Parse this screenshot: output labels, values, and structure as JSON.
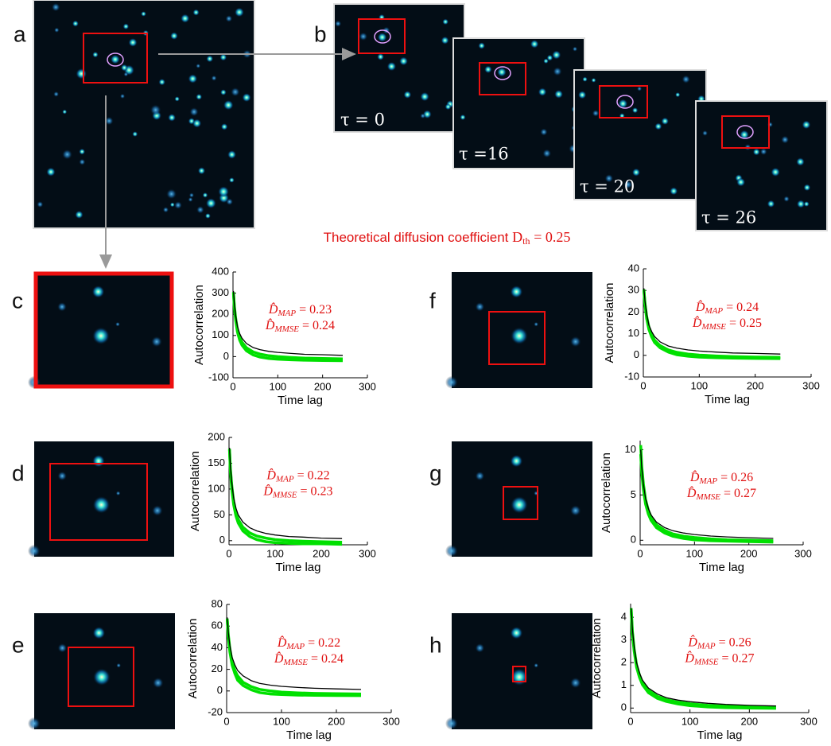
{
  "panel_labels": [
    "a",
    "b",
    "c",
    "d",
    "e",
    "f",
    "g",
    "h"
  ],
  "tau_labels": [
    "τ = 0",
    "τ =16",
    "τ = 20",
    "τ = 26"
  ],
  "theory": {
    "text": "Theoretical diffusion coefficient",
    "symbol": "D",
    "sub": "th",
    "rest": "= 0.25"
  },
  "chart_data": [
    {
      "type": "line",
      "x_label": "Time lag",
      "y_label": "Autocorrelation",
      "x": [
        1,
        3,
        6,
        10,
        15,
        20,
        30,
        45,
        60,
        80,
        100,
        130,
        160,
        200,
        245
      ],
      "series": [
        {
          "color": "#00e000",
          "values": [
            305,
            240,
            180,
            128,
            92,
            68,
            42,
            22,
            12,
            4,
            0,
            -4,
            -7,
            -9,
            -11
          ]
        },
        {
          "color": "#00e000",
          "values": [
            300,
            232,
            170,
            116,
            78,
            54,
            28,
            8,
            -2,
            -9,
            -12,
            -15,
            -17,
            -18,
            -19
          ]
        },
        {
          "color": "#000000",
          "values": [
            310,
            248,
            192,
            143,
            109,
            87,
            62,
            43,
            33,
            25,
            20,
            15,
            11,
            9,
            6
          ]
        }
      ],
      "xlim": [
        0,
        300
      ],
      "xticks": [
        0,
        100,
        200,
        300
      ],
      "ylim": [
        -100,
        400
      ],
      "yticks": [
        -100,
        0,
        100,
        200,
        300,
        400
      ],
      "annotations": [
        {
          "base": "D̂",
          "sub": "MAP",
          "rest": "= 0.23"
        },
        {
          "base": "D̂",
          "sub": "MMSE",
          "rest": "= 0.24"
        }
      ]
    },
    {
      "type": "line",
      "x_label": "Time lag",
      "y_label": "Autocorrelation",
      "x": [
        1,
        3,
        6,
        10,
        15,
        20,
        30,
        45,
        60,
        80,
        100,
        130,
        160,
        200,
        245
      ],
      "series": [
        {
          "color": "#00e000",
          "values": [
            178,
            140,
            106,
            76,
            55,
            41,
            26,
            15,
            9,
            5,
            2,
            0,
            -1,
            -2,
            -3
          ]
        },
        {
          "color": "#00e000",
          "values": [
            176,
            136,
            100,
            70,
            48,
            34,
            19,
            8,
            2,
            -2,
            -4,
            -5,
            -6,
            -6,
            -7
          ]
        },
        {
          "color": "#000000",
          "values": [
            180,
            144,
            112,
            83,
            63,
            50,
            36,
            25,
            19,
            14,
            11,
            8,
            7,
            5,
            4
          ]
        }
      ],
      "xlim": [
        0,
        300
      ],
      "xticks": [
        0,
        100,
        200,
        300
      ],
      "ylim": [
        -8,
        200
      ],
      "yticks": [
        0,
        50,
        100,
        150,
        200
      ],
      "annotations": [
        {
          "base": "D̂",
          "sub": "MAP",
          "rest": "= 0.22"
        },
        {
          "base": "D̂",
          "sub": "MMSE",
          "rest": "= 0.23"
        }
      ]
    },
    {
      "type": "line",
      "x_label": "Time lag",
      "y_label": "Autocorrelation",
      "x": [
        1,
        3,
        6,
        10,
        15,
        20,
        30,
        45,
        60,
        80,
        100,
        130,
        160,
        200,
        245
      ],
      "series": [
        {
          "color": "#00e000",
          "values": [
            67,
            52,
            39,
            27,
            19,
            14,
            8,
            4,
            1.5,
            0,
            -1,
            -1.8,
            -2.3,
            -2.6,
            -2.8
          ]
        },
        {
          "color": "#00e000",
          "values": [
            66,
            50,
            36,
            24,
            16,
            10,
            5,
            1,
            -1.5,
            -2.8,
            -3.3,
            -3.8,
            -4,
            -4.2,
            -4.3
          ]
        },
        {
          "color": "#000000",
          "values": [
            68,
            54,
            42,
            31,
            24,
            19,
            14,
            9.5,
            7,
            5.4,
            4.3,
            3.2,
            2.5,
            1.9,
            1.4
          ]
        }
      ],
      "xlim": [
        0,
        300
      ],
      "xticks": [
        0,
        100,
        200,
        300
      ],
      "ylim": [
        -20,
        80
      ],
      "yticks": [
        -20,
        0,
        20,
        40,
        60,
        80
      ],
      "annotations": [
        {
          "base": "D̂",
          "sub": "MAP",
          "rest": "= 0.22"
        },
        {
          "base": "D̂",
          "sub": "MMSE",
          "rest": "= 0.24"
        }
      ]
    },
    {
      "type": "line",
      "x_label": "Time lag",
      "y_label": "Autocorrelation",
      "x": [
        1,
        3,
        6,
        10,
        15,
        20,
        30,
        45,
        60,
        80,
        100,
        130,
        160,
        200,
        245
      ],
      "series": [
        {
          "color": "#00e000",
          "values": [
            30.5,
            24,
            18,
            13,
            9.5,
            7,
            4.5,
            2.5,
            1.4,
            0.6,
            0.1,
            -0.3,
            -0.6,
            -0.8,
            -0.9
          ]
        },
        {
          "color": "#00e000",
          "values": [
            30,
            23.5,
            17,
            12,
            8.5,
            6,
            3.5,
            1.5,
            0.3,
            -0.4,
            -0.8,
            -1.1,
            -1.3,
            -1.4,
            -1.5
          ]
        },
        {
          "color": "#000000",
          "values": [
            31,
            25,
            19,
            14,
            11,
            8.7,
            6.2,
            4.3,
            3.3,
            2.5,
            2,
            1.5,
            1.1,
            0.9,
            0.6
          ]
        }
      ],
      "xlim": [
        0,
        300
      ],
      "xticks": [
        0,
        100,
        200,
        300
      ],
      "ylim": [
        -10,
        40
      ],
      "yticks": [
        -10,
        0,
        10,
        20,
        30,
        40
      ],
      "annotations": [
        {
          "base": "D̂",
          "sub": "MAP",
          "rest": "= 0.24"
        },
        {
          "base": "D̂",
          "sub": "MMSE",
          "rest": "= 0.25"
        }
      ]
    },
    {
      "type": "line",
      "x_label": "Time lag",
      "y_label": "Autocorrelation",
      "x": [
        1,
        3,
        6,
        10,
        15,
        20,
        30,
        45,
        60,
        80,
        100,
        130,
        160,
        200,
        245
      ],
      "series": [
        {
          "color": "#00e000",
          "values": [
            10.5,
            8.2,
            6.2,
            4.5,
            3.3,
            2.6,
            1.7,
            1.1,
            0.7,
            0.45,
            0.3,
            0.15,
            0.05,
            0,
            -0.05
          ]
        },
        {
          "color": "#00e000",
          "values": [
            9.5,
            7.4,
            5.6,
            4,
            2.9,
            2.2,
            1.4,
            0.8,
            0.45,
            0.2,
            0.05,
            -0.05,
            -0.1,
            -0.15,
            -0.2
          ]
        },
        {
          "color": "#000000",
          "values": [
            10,
            8,
            6.2,
            4.6,
            3.5,
            2.8,
            2,
            1.4,
            1.05,
            0.8,
            0.63,
            0.47,
            0.37,
            0.28,
            0.2
          ]
        }
      ],
      "xlim": [
        0,
        300
      ],
      "xticks": [
        0,
        100,
        200,
        300
      ],
      "ylim": [
        -0.5,
        11
      ],
      "yticks": [
        0,
        5,
        10
      ],
      "annotations": [
        {
          "base": "D̂",
          "sub": "MAP",
          "rest": "= 0.26"
        },
        {
          "base": "D̂",
          "sub": "MMSE",
          "rest": "= 0.27"
        }
      ]
    },
    {
      "type": "line",
      "x_label": "Time lag",
      "y_label": "Autocorrelation",
      "x": [
        1,
        3,
        6,
        10,
        15,
        20,
        30,
        45,
        60,
        80,
        100,
        130,
        160,
        200,
        245
      ],
      "series": [
        {
          "color": "#00e000",
          "values": [
            4.4,
            3.4,
            2.6,
            1.9,
            1.45,
            1.13,
            0.78,
            0.52,
            0.37,
            0.26,
            0.19,
            0.12,
            0.08,
            0.05,
            0.03
          ]
        },
        {
          "color": "#00e000",
          "values": [
            4.3,
            3.3,
            2.5,
            1.8,
            1.35,
            1.03,
            0.68,
            0.43,
            0.29,
            0.18,
            0.11,
            0.05,
            0.02,
            0,
            -0.01
          ]
        },
        {
          "color": "#000000",
          "values": [
            4.4,
            3.5,
            2.7,
            2,
            1.55,
            1.23,
            0.88,
            0.62,
            0.46,
            0.35,
            0.28,
            0.21,
            0.16,
            0.12,
            0.09
          ]
        }
      ],
      "xlim": [
        0,
        300
      ],
      "xticks": [
        0,
        100,
        200,
        300
      ],
      "ylim": [
        -0.2,
        4.6
      ],
      "yticks": [
        0,
        1,
        2,
        3,
        4
      ],
      "annotations": [
        {
          "base": "D̂",
          "sub": "MAP",
          "rest": "= 0.26"
        },
        {
          "base": "D̂",
          "sub": "MMSE",
          "rest": "= 0.27"
        }
      ]
    }
  ]
}
